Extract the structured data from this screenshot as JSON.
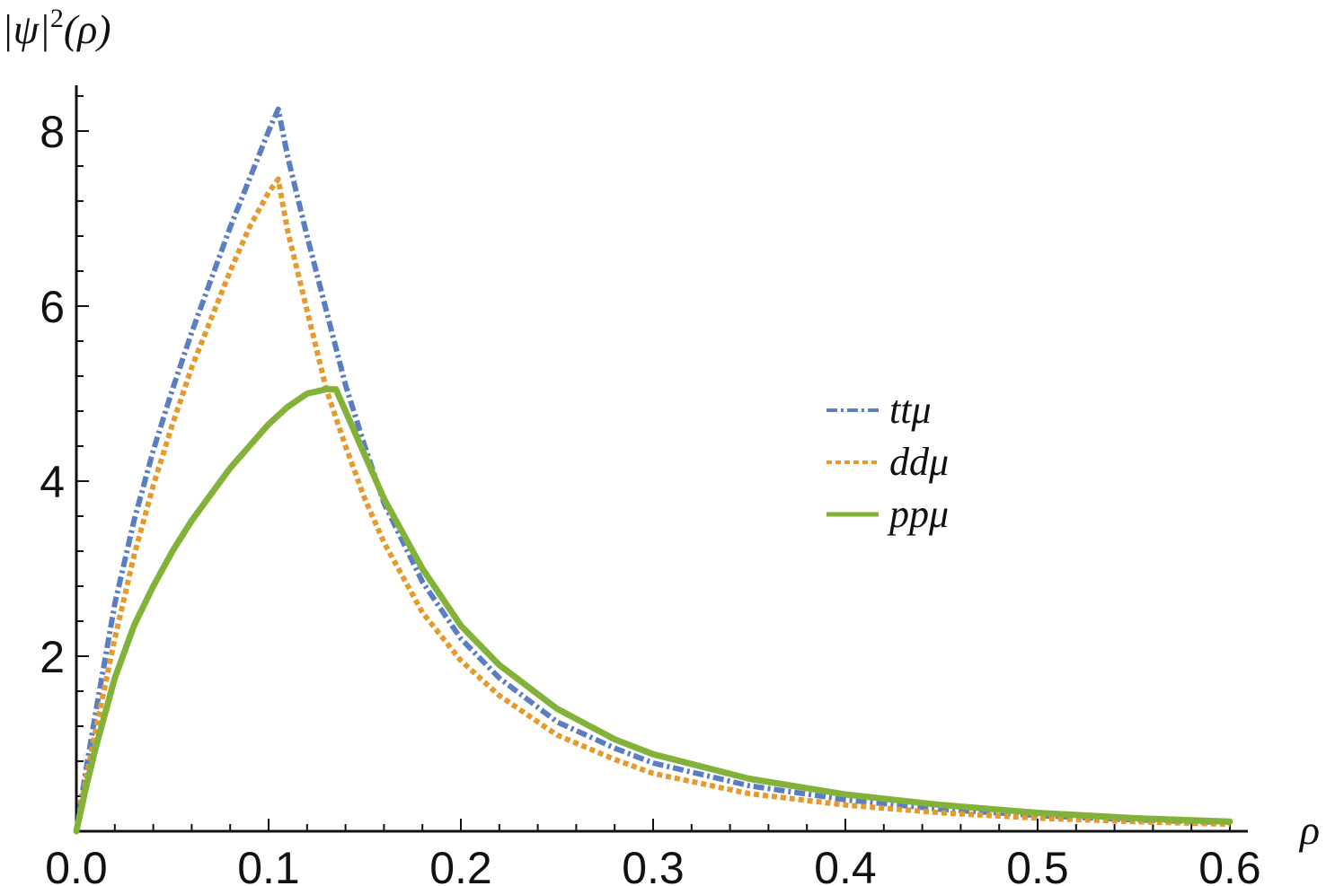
{
  "chart_data": {
    "type": "line",
    "title": "",
    "xlabel": "ρ",
    "ylabel": "|ψ|²(ρ)",
    "ylabel_parts": {
      "pre": "|ψ|",
      "sup": "2",
      "post": "(ρ)"
    },
    "xlim": [
      0,
      0.61
    ],
    "ylim": [
      0,
      8.4
    ],
    "x_ticks": [
      {
        "value": 0.0,
        "label": "0.0"
      },
      {
        "value": 0.1,
        "label": "0.1"
      },
      {
        "value": 0.2,
        "label": "0.2"
      },
      {
        "value": 0.3,
        "label": "0.3"
      },
      {
        "value": 0.4,
        "label": "0.4"
      },
      {
        "value": 0.5,
        "label": "0.5"
      },
      {
        "value": 0.6,
        "label": "0.6"
      }
    ],
    "y_ticks": [
      {
        "value": 2,
        "label": "2"
      },
      {
        "value": 4,
        "label": "4"
      },
      {
        "value": 6,
        "label": "6"
      },
      {
        "value": 8,
        "label": "8"
      }
    ],
    "grid": false,
    "legend_position": "right-center",
    "series": [
      {
        "name": "ttμ",
        "color": "#5b7ec2",
        "style": "dashdot",
        "x": [
          0.0,
          0.005,
          0.01,
          0.02,
          0.03,
          0.04,
          0.05,
          0.06,
          0.07,
          0.08,
          0.09,
          0.1,
          0.105,
          0.11,
          0.12,
          0.13,
          0.14,
          0.15,
          0.16,
          0.18,
          0.2,
          0.22,
          0.25,
          0.28,
          0.3,
          0.35,
          0.4,
          0.45,
          0.5,
          0.55,
          0.6
        ],
        "y": [
          0.0,
          0.7,
          1.35,
          2.6,
          3.55,
          4.35,
          5.05,
          5.7,
          6.3,
          6.9,
          7.45,
          8.0,
          8.25,
          7.7,
          6.8,
          5.95,
          5.1,
          4.4,
          3.75,
          2.85,
          2.2,
          1.75,
          1.25,
          0.95,
          0.78,
          0.52,
          0.36,
          0.25,
          0.18,
          0.13,
          0.1
        ]
      },
      {
        "name": "ddμ",
        "color": "#e49a2c",
        "style": "dotted",
        "x": [
          0.0,
          0.005,
          0.01,
          0.02,
          0.03,
          0.04,
          0.05,
          0.06,
          0.07,
          0.08,
          0.09,
          0.1,
          0.105,
          0.11,
          0.12,
          0.13,
          0.14,
          0.15,
          0.16,
          0.18,
          0.2,
          0.22,
          0.25,
          0.28,
          0.3,
          0.35,
          0.4,
          0.45,
          0.5,
          0.55,
          0.6
        ],
        "y": [
          0.0,
          0.6,
          1.15,
          2.2,
          3.15,
          3.95,
          4.65,
          5.3,
          5.85,
          6.4,
          6.9,
          7.3,
          7.45,
          6.85,
          5.95,
          5.05,
          4.4,
          3.8,
          3.3,
          2.5,
          1.95,
          1.55,
          1.1,
          0.82,
          0.66,
          0.43,
          0.3,
          0.21,
          0.15,
          0.11,
          0.08
        ]
      },
      {
        "name": "ppμ",
        "color": "#82b23a",
        "style": "solid",
        "x": [
          0.0,
          0.005,
          0.01,
          0.02,
          0.03,
          0.04,
          0.05,
          0.06,
          0.07,
          0.08,
          0.09,
          0.1,
          0.11,
          0.12,
          0.13,
          0.135,
          0.14,
          0.15,
          0.16,
          0.18,
          0.2,
          0.22,
          0.25,
          0.28,
          0.3,
          0.35,
          0.4,
          0.45,
          0.5,
          0.55,
          0.6
        ],
        "y": [
          0.0,
          0.5,
          0.95,
          1.75,
          2.35,
          2.8,
          3.2,
          3.55,
          3.85,
          4.15,
          4.4,
          4.65,
          4.85,
          5.0,
          5.05,
          5.05,
          4.8,
          4.3,
          3.8,
          3.0,
          2.35,
          1.9,
          1.4,
          1.05,
          0.88,
          0.6,
          0.42,
          0.3,
          0.21,
          0.15,
          0.11
        ]
      }
    ]
  }
}
